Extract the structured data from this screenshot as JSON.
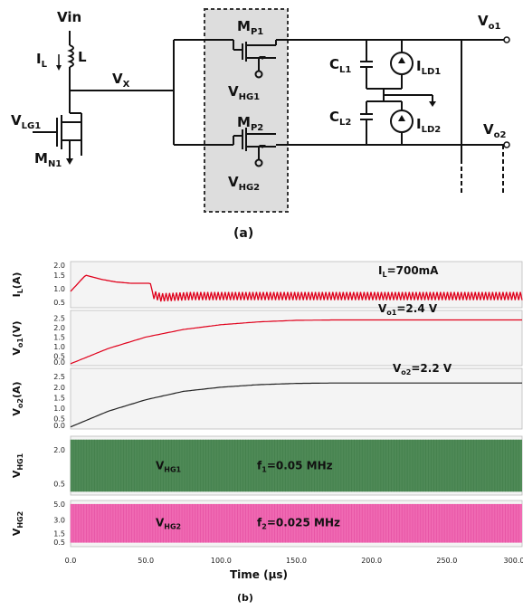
{
  "circuit": {
    "vin": "Vin",
    "il": "I",
    "il_sub": "L",
    "l": "L",
    "vx": "V",
    "vx_sub": "X",
    "vlg1": "V",
    "vlg1_sub": "LG1",
    "mn1": "M",
    "mn1_sub": "N1",
    "mp1": "M",
    "mp1_sub": "P1",
    "mp2": "M",
    "mp2_sub": "P2",
    "vhg1": "V",
    "vhg1_sub": "HG1",
    "vhg2": "V",
    "vhg2_sub": "HG2",
    "vo1": "V",
    "vo1_sub": "o1",
    "vo2": "V",
    "vo2_sub": "o2",
    "cl1": "C",
    "cl1_sub": "L1",
    "cl2": "C",
    "cl2_sub": "L2",
    "ild1": "I",
    "ild1_sub": "LD1",
    "ild2": "I",
    "ild2_sub": "LD2",
    "caption": "(a)"
  },
  "waveforms": {
    "caption": "(b)",
    "xlabel": "Time  (μs)",
    "xticks": [
      "0.0",
      "50.0",
      "100.0",
      "150.0",
      "200.0",
      "250.0",
      "300.0"
    ]
  },
  "chart_data": [
    {
      "type": "line",
      "ylabel": "I",
      "ylabel_sub": "L",
      "ylabel_unit": "(A)",
      "yticks": [
        "2.0",
        "1.5",
        "1.0",
        "0.5"
      ],
      "ylim": [
        0.3,
        2.0
      ],
      "annotation": "I",
      "annotation_sub": "L",
      "annotation_rest": "=700mA",
      "color": "#e0001b",
      "series": [
        {
          "x": [
            0,
            5,
            10,
            20,
            30,
            40,
            50,
            53,
            55,
            60,
            80,
            150,
            300
          ],
          "y": [
            0.9,
            1.2,
            1.5,
            1.35,
            1.25,
            1.2,
            1.2,
            1.2,
            0.75,
            0.65,
            0.7,
            0.7,
            0.7
          ]
        }
      ]
    },
    {
      "type": "line",
      "ylabel": "V",
      "ylabel_sub": "o1",
      "ylabel_unit": "(V)",
      "yticks": [
        "2.5",
        "2.0",
        "1.5",
        "1.0",
        "0.5",
        "0.0"
      ],
      "ylim": [
        0.0,
        2.9
      ],
      "annotation": "V",
      "annotation_sub": "o1",
      "annotation_rest": "=2.4 V",
      "color": "#e0001b",
      "series": [
        {
          "x": [
            0,
            25,
            50,
            75,
            100,
            125,
            150,
            175,
            200,
            250,
            300
          ],
          "y": [
            0.1,
            0.9,
            1.5,
            1.9,
            2.15,
            2.3,
            2.38,
            2.4,
            2.4,
            2.4,
            2.4
          ]
        }
      ]
    },
    {
      "type": "line",
      "ylabel": "V",
      "ylabel_sub": "o2",
      "ylabel_unit": "(A)",
      "yticks": [
        "2.5",
        "2.0",
        "1.5",
        "1.0",
        "0.5",
        "0.0"
      ],
      "ylim": [
        0.0,
        2.9
      ],
      "annotation": "V",
      "annotation_sub": "o2",
      "annotation_rest": "=2.2 V",
      "color": "#222222",
      "series": [
        {
          "x": [
            0,
            25,
            50,
            75,
            100,
            125,
            150,
            175,
            200,
            250,
            300
          ],
          "y": [
            0.1,
            0.85,
            1.4,
            1.8,
            2.0,
            2.12,
            2.18,
            2.2,
            2.2,
            2.2,
            2.2
          ]
        }
      ]
    },
    {
      "type": "area",
      "ylabel": "V",
      "ylabel_sub": "HG1",
      "yticks": [
        "2.0",
        "0.5"
      ],
      "ylim": [
        0.0,
        2.6
      ],
      "annotation": "V",
      "annotation_sub": "HG1",
      "annotation2": "f",
      "annotation2_sub": "1",
      "annotation2_rest": "=0.05 MHz",
      "color": "#3c7a45",
      "fill": "#4f8a57"
    },
    {
      "type": "area",
      "ylabel": "V",
      "ylabel_sub": "HG2",
      "yticks": [
        "5.0",
        "3.0",
        "1.5",
        "0.5"
      ],
      "ylim": [
        0.0,
        5.2
      ],
      "annotation": "V",
      "annotation_sub": "HG2",
      "annotation2": "f",
      "annotation2_sub": "2",
      "annotation2_rest": "=0.025 MHz",
      "color": "#e0439b",
      "fill": "#f06ab3"
    }
  ]
}
